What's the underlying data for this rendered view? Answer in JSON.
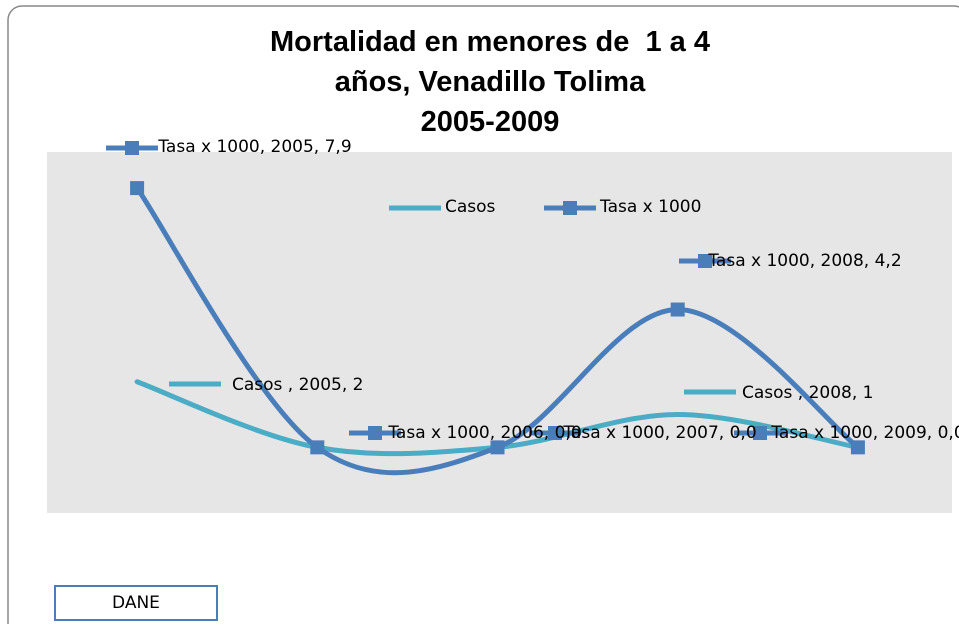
{
  "chart_data": {
    "type": "line",
    "title": [
      "Mortalidad en menores de  1 a 4",
      "años, Venadillo Tolima",
      "2005-2009"
    ],
    "categories": [
      "2005",
      "2006",
      "2007",
      "2008",
      "2009"
    ],
    "series": [
      {
        "name": "Casos",
        "color": "#4bacc6",
        "values": [
          2,
          0,
          0,
          1,
          0
        ],
        "value_labels": [
          "Casos , 2005, 2",
          null,
          null,
          "Casos , 2008, 1",
          null
        ]
      },
      {
        "name": "Tasa x 1000",
        "color": "#4a7ebb",
        "values": [
          7.9,
          0,
          0,
          4.2,
          0
        ],
        "value_labels": [
          "Tasa x 1000, 2005, 7,9",
          "Tasa x 1000, 2006, 0,0",
          "Tasa x 1000, 2007, 0,0",
          "Tasa x 1000, 2008, 4,2",
          "Tasa x 1000, 2009, 0,0"
        ]
      }
    ],
    "ylim": [
      -2,
      9
    ],
    "smooth": true,
    "source": "DANE"
  }
}
